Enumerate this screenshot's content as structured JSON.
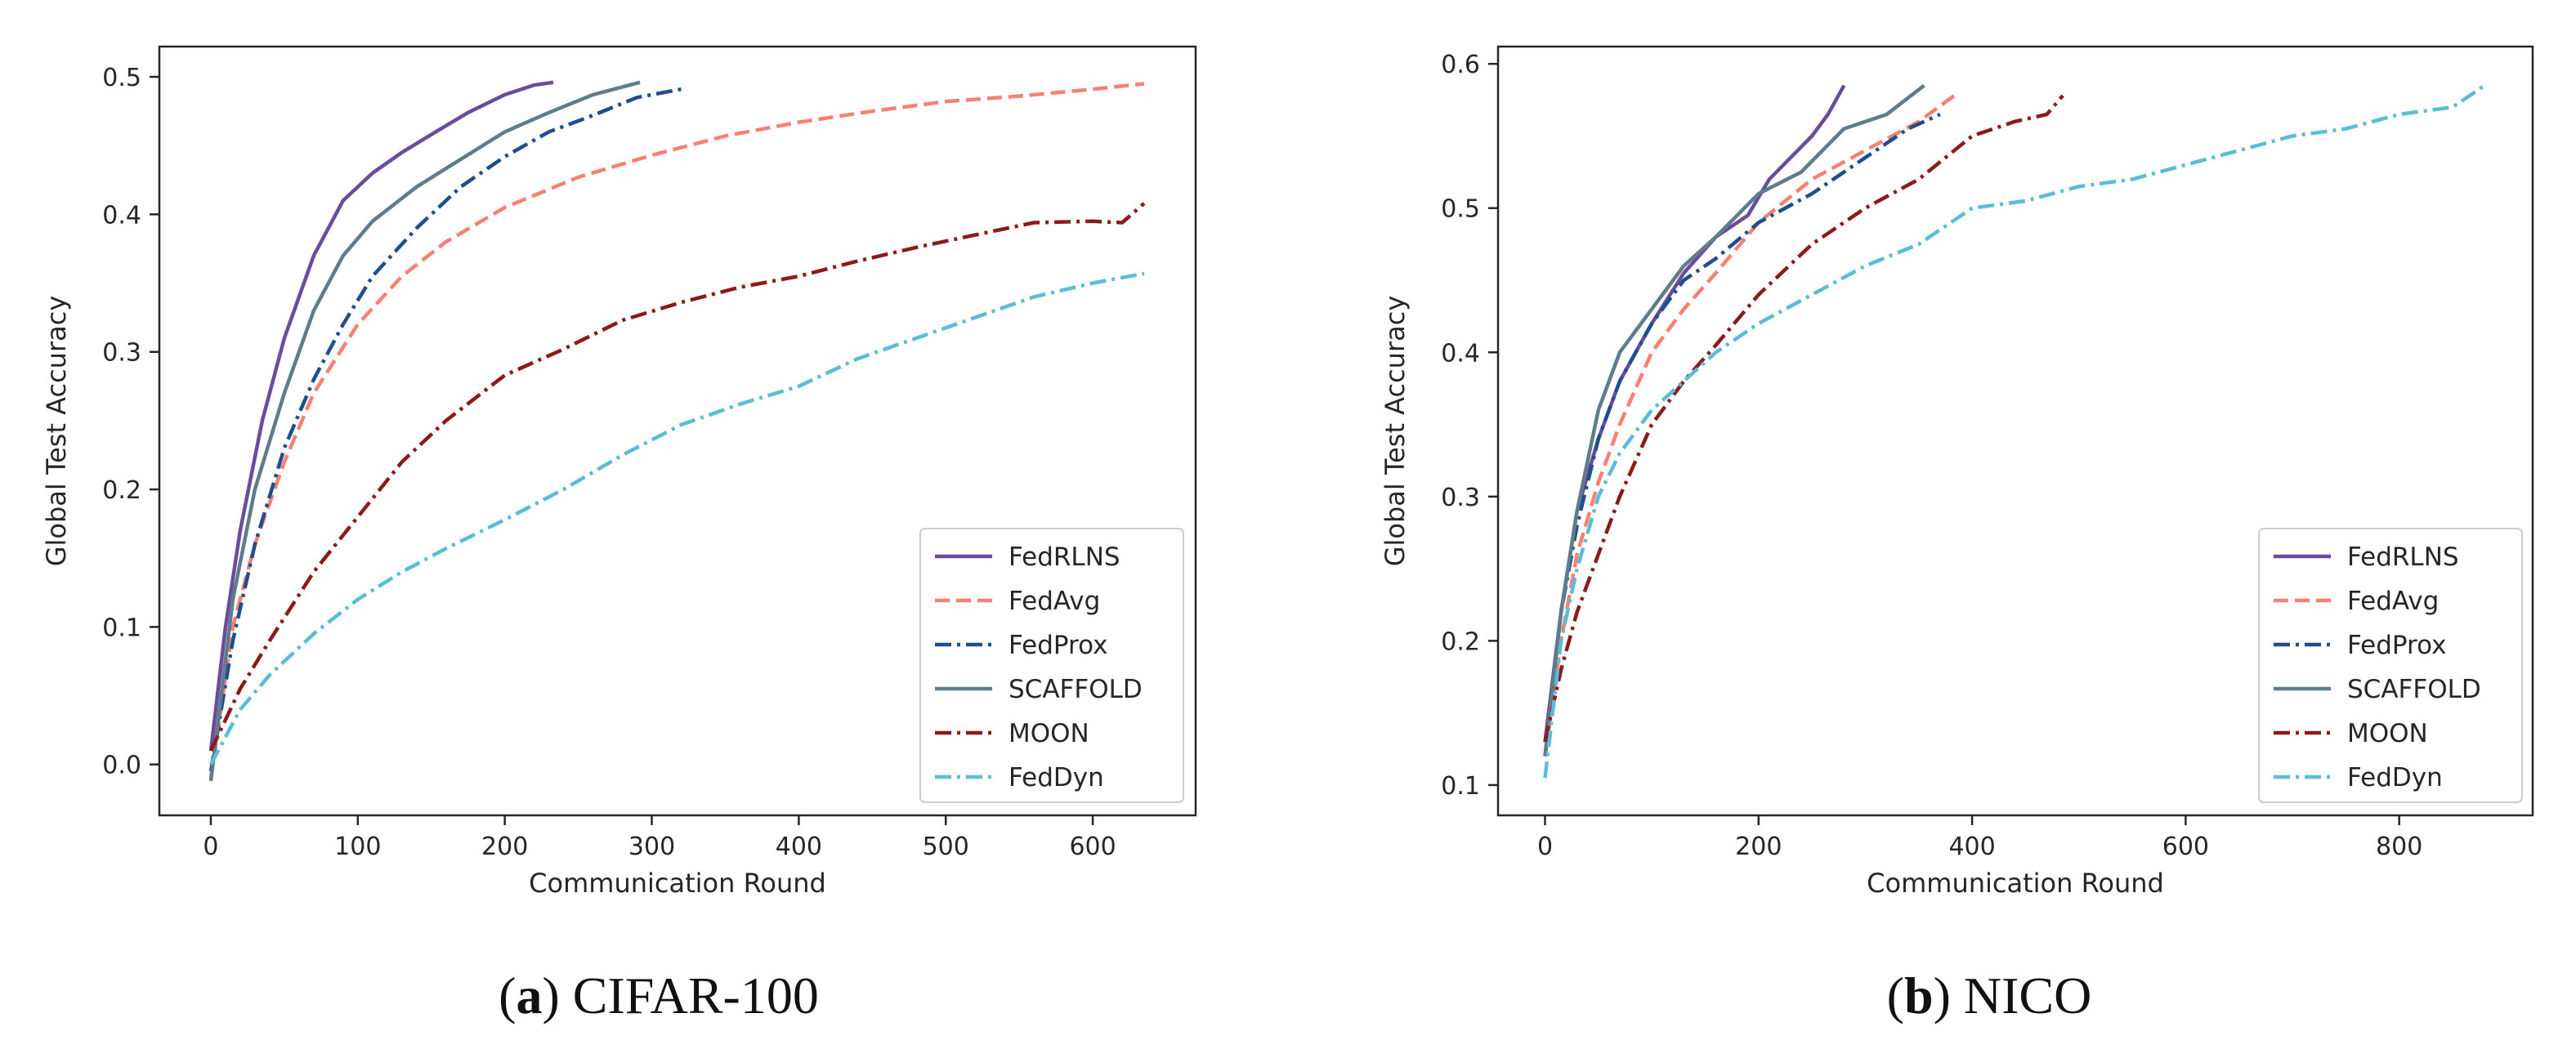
{
  "figure": {
    "panels": [
      {
        "caption_open": "(",
        "caption_letter": "a",
        "caption_close": ")",
        "caption_dataset": "CIFAR-100"
      },
      {
        "caption_open": "(",
        "caption_letter": "b",
        "caption_close": ")",
        "caption_dataset": "NICO"
      }
    ]
  },
  "chart_data": [
    {
      "type": "line",
      "title": "",
      "xlabel": "Communication Round",
      "ylabel": "Global Test Accuracy",
      "xlim": [
        -35,
        670
      ],
      "ylim": [
        -0.037,
        0.522
      ],
      "xticks": [
        0,
        100,
        200,
        300,
        400,
        500,
        600
      ],
      "xtick_labels": [
        "0",
        "100",
        "200",
        "300",
        "400",
        "500",
        "600"
      ],
      "yticks": [
        0.0,
        0.1,
        0.2,
        0.3,
        0.4,
        0.5
      ],
      "ytick_labels": [
        "0.0",
        "0.1",
        "0.2",
        "0.3",
        "0.4",
        "0.5"
      ],
      "grid": false,
      "legend_position": "lower-right",
      "series": [
        {
          "name": "FedRLNS",
          "color": "#6a4c9c",
          "style": "solid",
          "x": [
            0,
            10,
            20,
            35,
            50,
            70,
            90,
            110,
            130,
            150,
            175,
            200,
            220,
            233
          ],
          "y": [
            0.01,
            0.1,
            0.17,
            0.25,
            0.31,
            0.37,
            0.41,
            0.43,
            0.445,
            0.458,
            0.474,
            0.487,
            0.494,
            0.496
          ]
        },
        {
          "name": "FedAvg",
          "color": "#fa8072",
          "style": "dashed",
          "x": [
            0,
            15,
            30,
            50,
            70,
            100,
            130,
            160,
            200,
            250,
            300,
            350,
            400,
            450,
            500,
            550,
            600,
            635
          ],
          "y": [
            -0.01,
            0.1,
            0.16,
            0.22,
            0.27,
            0.32,
            0.355,
            0.38,
            0.405,
            0.427,
            0.443,
            0.457,
            0.467,
            0.475,
            0.482,
            0.486,
            0.491,
            0.495
          ]
        },
        {
          "name": "FedProx",
          "color": "#1f4e8c",
          "style": "dashdot",
          "x": [
            0,
            15,
            30,
            50,
            70,
            90,
            110,
            140,
            170,
            200,
            230,
            260,
            290,
            320
          ],
          "y": [
            -0.005,
            0.09,
            0.16,
            0.23,
            0.28,
            0.32,
            0.355,
            0.39,
            0.42,
            0.442,
            0.46,
            0.472,
            0.485,
            0.491
          ]
        },
        {
          "name": "SCAFFOLD",
          "color": "#5f7c8a",
          "style": "solid",
          "x": [
            0,
            15,
            30,
            50,
            70,
            90,
            110,
            140,
            170,
            200,
            230,
            260,
            292
          ],
          "y": [
            -0.012,
            0.12,
            0.2,
            0.27,
            0.33,
            0.37,
            0.395,
            0.42,
            0.44,
            0.46,
            0.474,
            0.487,
            0.496
          ]
        },
        {
          "name": "MOON",
          "color": "#8b1a1a",
          "style": "dashdot",
          "x": [
            0,
            20,
            40,
            70,
            100,
            130,
            160,
            200,
            240,
            280,
            320,
            360,
            400,
            440,
            480,
            520,
            560,
            600,
            620,
            635
          ],
          "y": [
            0.01,
            0.055,
            0.09,
            0.14,
            0.18,
            0.22,
            0.25,
            0.283,
            0.302,
            0.323,
            0.336,
            0.347,
            0.355,
            0.366,
            0.376,
            0.385,
            0.394,
            0.395,
            0.394,
            0.408
          ]
        },
        {
          "name": "FedDyn",
          "color": "#5bbcd6",
          "style": "dashdot",
          "x": [
            0,
            20,
            40,
            70,
            100,
            130,
            160,
            200,
            240,
            280,
            320,
            360,
            400,
            440,
            480,
            520,
            560,
            600,
            635
          ],
          "y": [
            0.0,
            0.04,
            0.065,
            0.095,
            0.12,
            0.14,
            0.157,
            0.178,
            0.2,
            0.225,
            0.247,
            0.262,
            0.275,
            0.295,
            0.31,
            0.325,
            0.34,
            0.35,
            0.357
          ]
        }
      ]
    },
    {
      "type": "line",
      "title": "",
      "xlabel": "Communication Round",
      "ylabel": "Global Test Accuracy",
      "xlim": [
        -44,
        925
      ],
      "ylim": [
        0.079,
        0.612
      ],
      "xticks": [
        0,
        200,
        400,
        600,
        800
      ],
      "xtick_labels": [
        "0",
        "200",
        "400",
        "600",
        "800"
      ],
      "yticks": [
        0.1,
        0.2,
        0.3,
        0.4,
        0.5,
        0.6
      ],
      "ytick_labels": [
        "0.1",
        "0.2",
        "0.3",
        "0.4",
        "0.5",
        "0.6"
      ],
      "grid": false,
      "legend_position": "lower-right",
      "series": [
        {
          "name": "FedRLNS",
          "color": "#6a4c9c",
          "style": "solid",
          "x": [
            0,
            15,
            30,
            50,
            70,
            100,
            130,
            160,
            190,
            210,
            230,
            250,
            265,
            280
          ],
          "y": [
            0.13,
            0.22,
            0.29,
            0.34,
            0.38,
            0.42,
            0.455,
            0.48,
            0.495,
            0.52,
            0.535,
            0.55,
            0.565,
            0.585
          ]
        },
        {
          "name": "FedAvg",
          "color": "#fa8072",
          "style": "dashed",
          "x": [
            0,
            15,
            30,
            50,
            70,
            100,
            130,
            160,
            200,
            250,
            300,
            350,
            387
          ],
          "y": [
            0.12,
            0.2,
            0.26,
            0.31,
            0.35,
            0.4,
            0.43,
            0.455,
            0.49,
            0.52,
            0.54,
            0.56,
            0.58
          ]
        },
        {
          "name": "FedProx",
          "color": "#1f4e8c",
          "style": "dashdot",
          "x": [
            0,
            15,
            30,
            50,
            70,
            100,
            130,
            160,
            200,
            250,
            300,
            340,
            370
          ],
          "y": [
            0.12,
            0.22,
            0.28,
            0.34,
            0.38,
            0.42,
            0.45,
            0.465,
            0.49,
            0.51,
            0.535,
            0.555,
            0.565
          ]
        },
        {
          "name": "SCAFFOLD",
          "color": "#5f7c8a",
          "style": "solid",
          "x": [
            0,
            15,
            30,
            50,
            70,
            100,
            130,
            160,
            200,
            240,
            280,
            320,
            355
          ],
          "y": [
            0.12,
            0.22,
            0.29,
            0.36,
            0.4,
            0.43,
            0.46,
            0.48,
            0.51,
            0.525,
            0.555,
            0.565,
            0.585
          ]
        },
        {
          "name": "MOON",
          "color": "#8b1a1a",
          "style": "dashdot",
          "x": [
            0,
            15,
            30,
            50,
            70,
            100,
            130,
            160,
            200,
            250,
            300,
            350,
            400,
            440,
            470,
            485
          ],
          "y": [
            0.13,
            0.18,
            0.22,
            0.26,
            0.3,
            0.35,
            0.38,
            0.405,
            0.44,
            0.475,
            0.5,
            0.52,
            0.55,
            0.56,
            0.565,
            0.578
          ]
        },
        {
          "name": "FedDyn",
          "color": "#5bbcd6",
          "style": "dashdot",
          "x": [
            0,
            15,
            30,
            50,
            70,
            100,
            130,
            160,
            200,
            250,
            300,
            350,
            400,
            450,
            500,
            550,
            600,
            650,
            700,
            750,
            800,
            850,
            880
          ],
          "y": [
            0.105,
            0.2,
            0.25,
            0.3,
            0.33,
            0.36,
            0.38,
            0.4,
            0.42,
            0.44,
            0.46,
            0.475,
            0.5,
            0.505,
            0.515,
            0.52,
            0.53,
            0.54,
            0.55,
            0.555,
            0.565,
            0.57,
            0.585
          ]
        }
      ]
    }
  ]
}
